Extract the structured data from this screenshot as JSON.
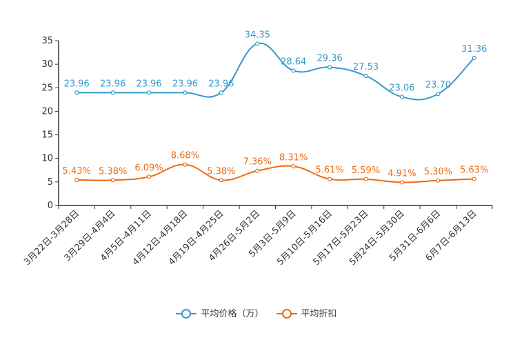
{
  "chart_data": {
    "type": "line",
    "categories": [
      "3月22日-3月28日",
      "3月29日-4月4日",
      "4月5日-4月11日",
      "4月12日-4月18日",
      "4月19日-4月25日",
      "4月26日-5月2日",
      "5月3日-5月9日",
      "5月10日-5月16日",
      "5月17日-5月23日",
      "5月24日-5月30日",
      "5月31日-6月6日",
      "6月7日-6月13日"
    ],
    "series": [
      {
        "name": "平均价格（万）",
        "color": "#3399cc",
        "values": [
          23.96,
          23.96,
          23.96,
          23.96,
          23.96,
          34.35,
          28.64,
          29.36,
          27.53,
          23.06,
          23.7,
          31.36
        ],
        "labels": [
          "23.96",
          "23.96",
          "23.96",
          "23.96",
          "23.96",
          "34.35",
          "28.64",
          "29.36",
          "27.53",
          "23.06",
          "23.70",
          "31.36"
        ]
      },
      {
        "name": "平均折扣",
        "color": "#ee6a10",
        "values": [
          5.43,
          5.38,
          6.09,
          8.68,
          5.38,
          7.36,
          8.31,
          5.61,
          5.59,
          4.91,
          5.3,
          5.63
        ],
        "labels": [
          "5.43%",
          "5.38%",
          "6.09%",
          "8.68%",
          "5.38%",
          "7.36%",
          "8.31%",
          "5.61%",
          "5.59%",
          "4.91%",
          "5.30%",
          "5.63%"
        ]
      }
    ],
    "ylim": [
      0,
      35
    ],
    "yticks": [
      0,
      5,
      10,
      15,
      20,
      25,
      30,
      35
    ],
    "grid": false,
    "legend": "bottom-center"
  }
}
